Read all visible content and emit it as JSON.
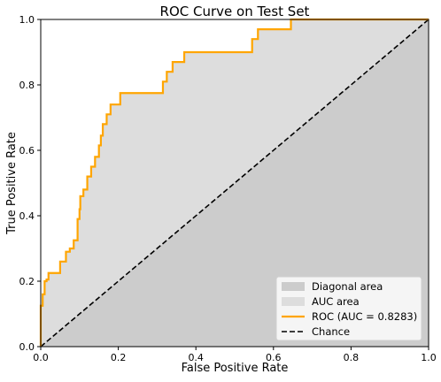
{
  "chart_data": {
    "type": "line",
    "title": "ROC Curve on Test Set",
    "xlabel": "False Positive Rate",
    "ylabel": "True Positive Rate",
    "xlim": [
      0.0,
      1.0
    ],
    "ylim": [
      0.0,
      1.0
    ],
    "xticks": [
      "0.0",
      "0.2",
      "0.4",
      "0.6",
      "0.8",
      "1.0"
    ],
    "yticks": [
      "0.0",
      "0.2",
      "0.4",
      "0.6",
      "0.8",
      "1.0"
    ],
    "grid": false,
    "legend_position": "lower-right",
    "areas": [
      {
        "name": "Diagonal area",
        "color": "#cccccc",
        "description_of_region": "below diagonal"
      },
      {
        "name": "AUC area",
        "color": "#dddddd",
        "description_of_region": "below ROC curve"
      }
    ],
    "series": [
      {
        "name": "ROC (AUC = 0.8283)",
        "color": "#ffa500",
        "style": "solid",
        "x": [
          0.0,
          0.0,
          0.005,
          0.005,
          0.01,
          0.01,
          0.015,
          0.015,
          0.02,
          0.02,
          0.05,
          0.05,
          0.065,
          0.065,
          0.075,
          0.075,
          0.085,
          0.085,
          0.095,
          0.095,
          0.1,
          0.1,
          0.102,
          0.102,
          0.11,
          0.11,
          0.12,
          0.12,
          0.13,
          0.13,
          0.14,
          0.14,
          0.15,
          0.15,
          0.155,
          0.155,
          0.16,
          0.16,
          0.17,
          0.17,
          0.18,
          0.18,
          0.205,
          0.205,
          0.235,
          0.235,
          0.315,
          0.315,
          0.325,
          0.325,
          0.34,
          0.34,
          0.37,
          0.37,
          0.545,
          0.545,
          0.56,
          0.56,
          0.645,
          0.645,
          1.0
        ],
        "y": [
          0.0,
          0.125,
          0.125,
          0.16,
          0.16,
          0.2,
          0.2,
          0.205,
          0.205,
          0.225,
          0.225,
          0.26,
          0.26,
          0.29,
          0.29,
          0.3,
          0.3,
          0.325,
          0.325,
          0.39,
          0.39,
          0.42,
          0.42,
          0.46,
          0.46,
          0.48,
          0.48,
          0.52,
          0.52,
          0.55,
          0.55,
          0.58,
          0.58,
          0.615,
          0.615,
          0.645,
          0.645,
          0.68,
          0.68,
          0.71,
          0.71,
          0.74,
          0.74,
          0.775,
          0.775,
          0.775,
          0.775,
          0.81,
          0.81,
          0.84,
          0.84,
          0.87,
          0.87,
          0.9,
          0.9,
          0.94,
          0.94,
          0.97,
          0.97,
          1.0,
          1.0
        ]
      },
      {
        "name": "Chance",
        "color": "#000000",
        "style": "dashed",
        "x": [
          0.0,
          1.0
        ],
        "y": [
          0.0,
          1.0
        ]
      }
    ]
  }
}
